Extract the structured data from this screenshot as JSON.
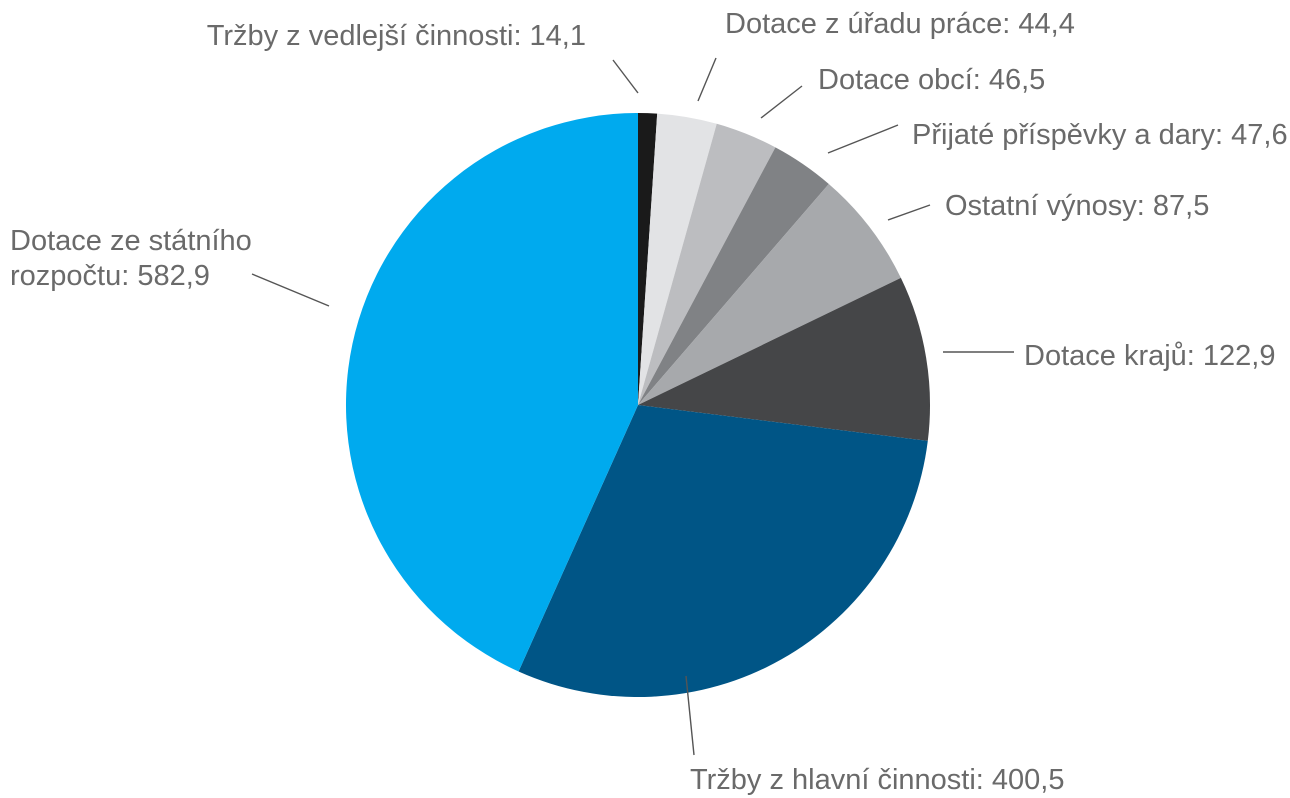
{
  "chart_data": {
    "type": "pie",
    "title": "",
    "start_angle_deg": 0,
    "direction": "clockwise",
    "slices": [
      {
        "label": "Tržby z vedlejší činnosti",
        "value": 14.1,
        "value_text": "14,1",
        "color": "#1a1a1a"
      },
      {
        "label": "Dotace z úřadu práce",
        "value": 44.4,
        "value_text": "44,4",
        "color": "#e2e3e5"
      },
      {
        "label": "Dotace obcí",
        "value": 46.5,
        "value_text": "46,5",
        "color": "#bcbdc0"
      },
      {
        "label": "Přijaté příspěvky a dary",
        "value": 47.6,
        "value_text": "47,6",
        "color": "#808285"
      },
      {
        "label": "Ostatní výnosy",
        "value": 87.5,
        "value_text": "87,5",
        "color": "#a7a9ac"
      },
      {
        "label": "Dotace krajů",
        "value": 122.9,
        "value_text": "122,9",
        "color": "#454648"
      },
      {
        "label": "Tržby z hlavní činnosti",
        "value": 400.5,
        "value_text": "400,5",
        "color": "#005586"
      },
      {
        "label": "Dotace ze státního rozpočtu",
        "value": 582.9,
        "value_text": "582,9",
        "color": "#00aaee"
      }
    ]
  }
}
